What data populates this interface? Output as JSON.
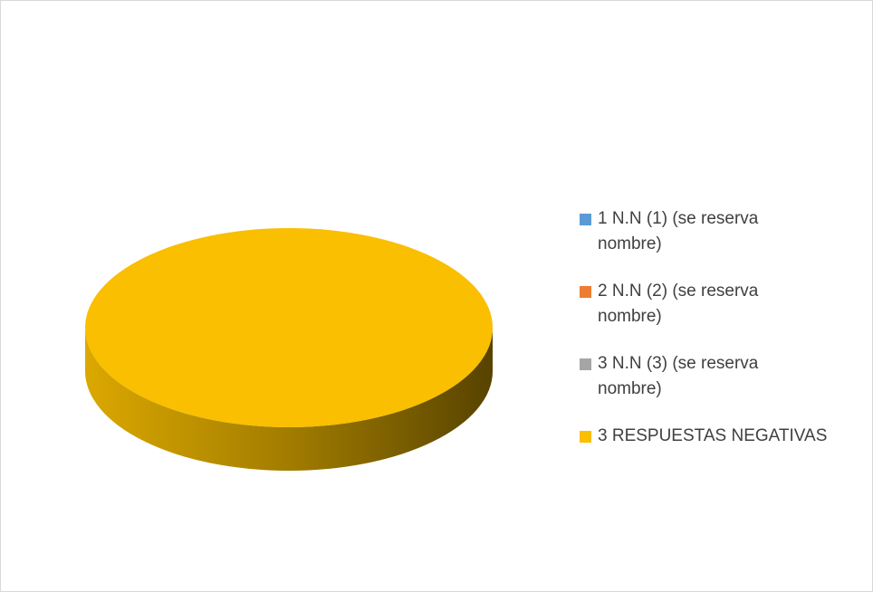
{
  "chart_data": {
    "type": "pie",
    "categories": [
      "1 N.N (1) (se reserva nombre)",
      "2 N.N (2) (se reserva nombre)",
      "3 N.N (3) (se reserva nombre)",
      "3 RESPUESTAS NEGATIVAS"
    ],
    "values": [
      0,
      0,
      0,
      100
    ],
    "colors": [
      "#5b9bd5",
      "#ed7d31",
      "#a5a5a5",
      "#f9bf00"
    ],
    "legend": "right"
  }
}
